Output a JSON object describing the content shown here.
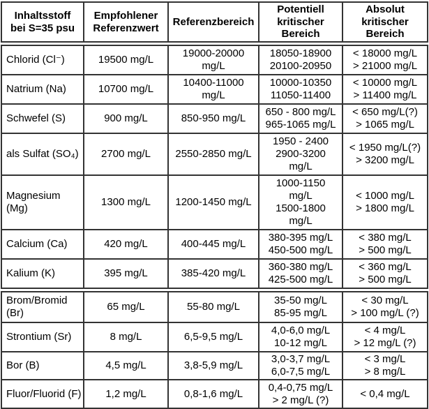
{
  "colors": {
    "background": "#ffffff",
    "border": "#333333",
    "text": "#000000"
  },
  "table": {
    "title_semantic": "Seawater constituent reference values at S=35 psu",
    "header": [
      [
        "Inhaltsstoff",
        "bei S=35 psu"
      ],
      [
        "Empfohlener",
        "Referenzwert"
      ],
      "Referenzbereich",
      [
        "Potentiell",
        "kritischer",
        "Bereich"
      ],
      [
        "Absolut",
        "kritischer",
        "Bereich"
      ]
    ],
    "rows": [
      {
        "cells": [
          "Chlorid (Cl⁻)",
          "19500 mg/L",
          [
            "19000-20000",
            "mg/L"
          ],
          [
            "18050-18900",
            "20100-20950"
          ],
          [
            "< 18000 mg/L",
            "> 21000 mg/L"
          ]
        ]
      },
      {
        "cells": [
          "Natrium (Na)",
          "10700 mg/L",
          [
            "10400-11000",
            "mg/L"
          ],
          [
            "10000-10350",
            "11050-11400"
          ],
          [
            "< 10000 mg/L",
            "> 11400 mg/L"
          ]
        ]
      },
      {
        "cells": [
          "Schwefel (S)",
          "900 mg/L",
          "850-950 mg/L",
          [
            "650 - 800 mg/L",
            "965-1065 mg/L"
          ],
          [
            "< 650 mg/L(?)",
            "> 1065 mg/L"
          ]
        ]
      },
      {
        "cells": [
          "als Sulfat (SO₄)",
          "2700 mg/L",
          "2550-2850 mg/L",
          [
            "1950 - 2400",
            "2900-3200",
            "mg/L"
          ],
          [
            "< 1950 mg/L(?)",
            "> 3200 mg/L"
          ]
        ]
      },
      {
        "cells": [
          "Magnesium (Mg)",
          "1300 mg/L",
          "1200-1450 mg/L",
          [
            "1000-1150",
            "mg/L",
            "1500-1800",
            "mg/L"
          ],
          [
            "< 1000 mg/L",
            "> 1800 mg/L"
          ]
        ]
      },
      {
        "cells": [
          "Calcium (Ca)",
          "420 mg/L",
          "400-445 mg/L",
          [
            "380-395 mg/L",
            "450-500 mg/L"
          ],
          [
            "< 380 mg/L",
            "> 500 mg/L"
          ]
        ]
      },
      {
        "cells": [
          "Kalium (K)",
          "395 mg/L",
          "385-420 mg/L",
          [
            "360-380 mg/L",
            "425-500 mg/L"
          ],
          [
            "< 360 mg/L",
            "> 500 mg/L"
          ]
        ]
      },
      {
        "cells": [
          [
            "Brom/Bromid",
            "(Br)"
          ],
          "65 mg/L",
          "55-80 mg/L",
          [
            "35-50 mg/L",
            "85-95 mg/L"
          ],
          [
            "< 30 mg/L",
            "> 100 mg/L (?)"
          ]
        ]
      },
      {
        "cells": [
          "Strontium (Sr)",
          "8 mg/L",
          "6,5-9,5 mg/L",
          [
            "4,0-6,0 mg/L",
            "10-12 mg/L"
          ],
          [
            "< 4 mg/L",
            "> 12 mg/L (?)"
          ]
        ]
      },
      {
        "cells": [
          "Bor (B)",
          "4,5 mg/L",
          "3,8-5,9 mg/L",
          [
            "3,0-3,7 mg/L",
            "6,0-7,5 mg/L"
          ],
          [
            "< 3 mg/L",
            "> 8 mg/L"
          ]
        ]
      },
      {
        "cells": [
          "Fluor/Fluorid (F)",
          "1,2 mg/L",
          "0,8-1,6 mg/L",
          [
            "0,4-0,75 mg/L",
            "> 2 mg/L (?)"
          ],
          "< 0,4 mg/L"
        ]
      }
    ]
  }
}
